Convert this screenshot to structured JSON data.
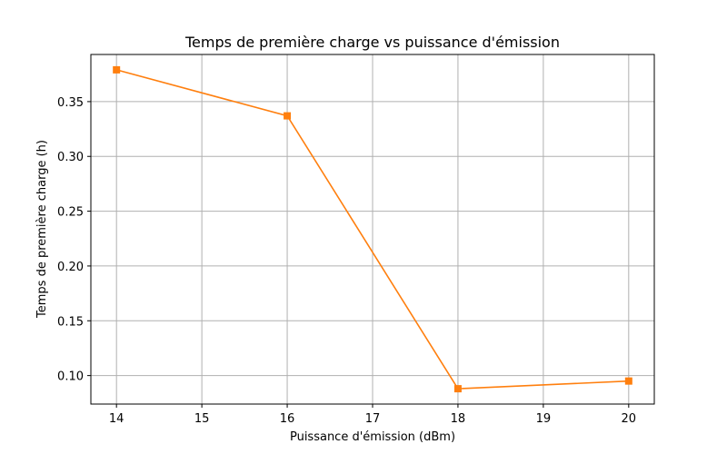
{
  "chart_data": {
    "type": "line",
    "title": "Temps de première charge vs puissance d'émission",
    "xlabel": "Puissance d'émission (dBm)",
    "ylabel": "Temps de première charge (h)",
    "x": [
      14,
      16,
      18,
      20
    ],
    "series": [
      {
        "values": [
          0.379,
          0.337,
          0.088,
          0.095
        ],
        "color": "#ff7f0e",
        "marker": "square"
      }
    ],
    "xlim": [
      13.7,
      20.3
    ],
    "ylim": [
      0.074,
      0.393
    ],
    "xticks": [
      "14",
      "15",
      "16",
      "17",
      "18",
      "19",
      "20"
    ],
    "yticks": [
      "0.10",
      "0.15",
      "0.20",
      "0.25",
      "0.30",
      "0.35"
    ],
    "grid": true
  }
}
